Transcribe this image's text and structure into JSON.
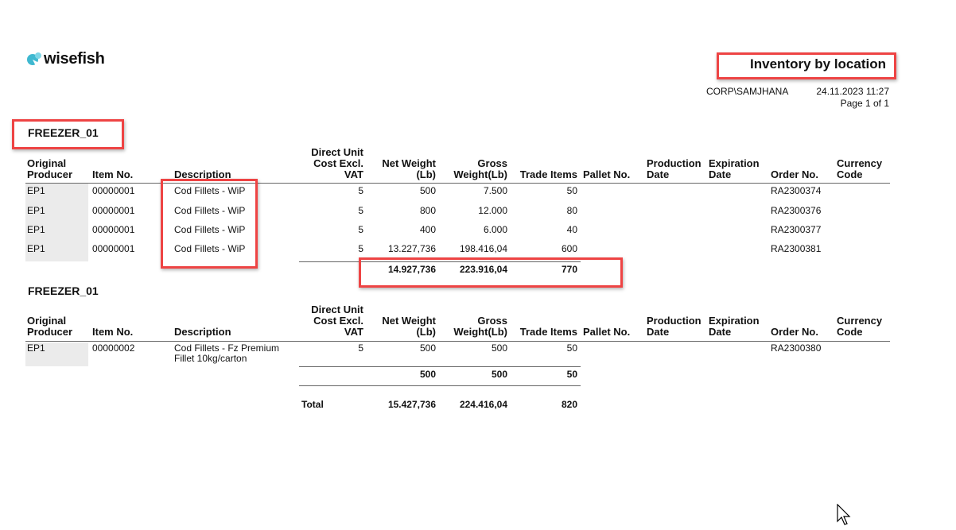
{
  "header": {
    "logo_text": "wisefish",
    "title": "Inventory by location",
    "user": "CORP\\SAMJHANA",
    "datetime": "24.11.2023 11:27",
    "page": "Page 1 of 1"
  },
  "columns": [
    [
      "Original",
      "Producer"
    ],
    [
      "Item No."
    ],
    [
      "Description"
    ],
    [
      "Direct Unit",
      "Cost Excl.",
      "VAT"
    ],
    [
      "Net Weight",
      "(Lb)"
    ],
    [
      "Gross",
      "Weight(Lb)"
    ],
    [
      "Trade Items"
    ],
    [
      "Pallet No."
    ],
    [
      "Production",
      "Date"
    ],
    [
      "Expiration",
      "Date"
    ],
    [
      "Order No."
    ],
    [
      "Currency",
      "Code"
    ]
  ],
  "sections": [
    {
      "location": "FREEZER_01",
      "rows": [
        {
          "producer": "EP1",
          "item_no": "00000001",
          "description": [
            "Cod Fillets - WiP"
          ],
          "unit_cost": "5",
          "net_weight": "500",
          "gross_weight": "7.500",
          "trade_items": "50",
          "order_no": "RA2300374"
        },
        {
          "producer": "EP1",
          "item_no": "00000001",
          "description": [
            "Cod Fillets - WiP"
          ],
          "unit_cost": "5",
          "net_weight": "800",
          "gross_weight": "12.000",
          "trade_items": "80",
          "order_no": "RA2300376"
        },
        {
          "producer": "EP1",
          "item_no": "00000001",
          "description": [
            "Cod Fillets - WiP"
          ],
          "unit_cost": "5",
          "net_weight": "400",
          "gross_weight": "6.000",
          "trade_items": "40",
          "order_no": "RA2300377"
        },
        {
          "producer": "EP1",
          "item_no": "00000001",
          "description": [
            "Cod Fillets - WiP"
          ],
          "unit_cost": "5",
          "net_weight": "13.227,736",
          "gross_weight": "198.416,04",
          "trade_items": "600",
          "order_no": "RA2300381"
        }
      ],
      "subtotal": {
        "net_weight": "14.927,736",
        "gross_weight": "223.916,04",
        "trade_items": "770"
      }
    },
    {
      "location": "FREEZER_01",
      "rows": [
        {
          "producer": "EP1",
          "item_no": "00000002",
          "description": [
            "Cod Fillets - Fz Premium",
            "Fillet 10kg/carton"
          ],
          "unit_cost": "5",
          "net_weight": "500",
          "gross_weight": "500",
          "trade_items": "50",
          "order_no": "RA2300380"
        }
      ],
      "subtotal": {
        "net_weight": "500",
        "gross_weight": "500",
        "trade_items": "50"
      }
    }
  ],
  "total": {
    "label": "Total",
    "net_weight": "15.427,736",
    "gross_weight": "224.416,04",
    "trade_items": "820"
  },
  "colors": {
    "logo": "#3fb8d0",
    "annotation": "#ee4444"
  }
}
